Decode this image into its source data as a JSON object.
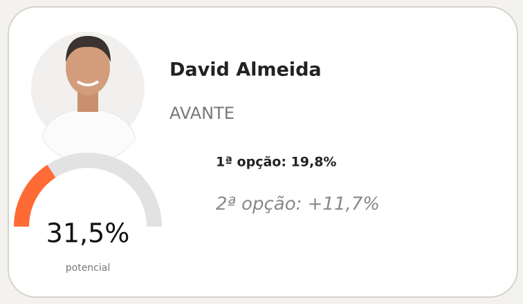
{
  "candidate": {
    "name": "David Almeida",
    "party": "AVANTE",
    "first_option": "1ª opção: 19,8%",
    "second_option": "2ª opção: +11,7%"
  },
  "gauge": {
    "value": 31.5,
    "value_label": "31,5%",
    "caption": "potencial"
  }
}
